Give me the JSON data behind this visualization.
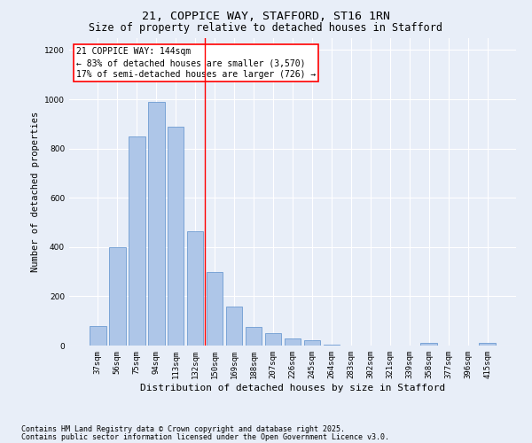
{
  "title1": "21, COPPICE WAY, STAFFORD, ST16 1RN",
  "title2": "Size of property relative to detached houses in Stafford",
  "xlabel": "Distribution of detached houses by size in Stafford",
  "ylabel": "Number of detached properties",
  "categories": [
    "37sqm",
    "56sqm",
    "75sqm",
    "94sqm",
    "113sqm",
    "132sqm",
    "150sqm",
    "169sqm",
    "188sqm",
    "207sqm",
    "226sqm",
    "245sqm",
    "264sqm",
    "283sqm",
    "302sqm",
    "321sqm",
    "339sqm",
    "358sqm",
    "377sqm",
    "396sqm",
    "415sqm"
  ],
  "values": [
    80,
    400,
    850,
    990,
    890,
    465,
    300,
    160,
    75,
    50,
    30,
    20,
    5,
    0,
    0,
    0,
    0,
    10,
    0,
    0,
    12
  ],
  "bar_color": "#aec6e8",
  "bar_edge_color": "#5b8fcc",
  "background_color": "#e8eef8",
  "grid_color": "#ffffff",
  "annotation_line1": "21 COPPICE WAY: 144sqm",
  "annotation_line2": "← 83% of detached houses are smaller (3,570)",
  "annotation_line3": "17% of semi-detached houses are larger (726) →",
  "vline_position": 5.5,
  "vline_color": "red",
  "annotation_box_color": "#ffffff",
  "annotation_box_edge_color": "red",
  "ylim": [
    0,
    1250
  ],
  "yticks": [
    0,
    200,
    400,
    600,
    800,
    1000,
    1200
  ],
  "footer1": "Contains HM Land Registry data © Crown copyright and database right 2025.",
  "footer2": "Contains public sector information licensed under the Open Government Licence v3.0.",
  "title1_fontsize": 9.5,
  "title2_fontsize": 8.5,
  "xlabel_fontsize": 8,
  "ylabel_fontsize": 7.5,
  "tick_fontsize": 6.5,
  "annotation_fontsize": 7,
  "footer_fontsize": 6
}
